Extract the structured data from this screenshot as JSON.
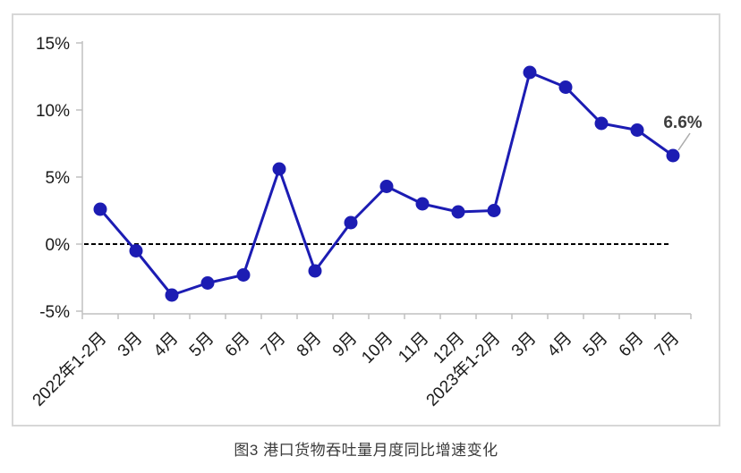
{
  "caption": "图3 港口货物吞吐量月度同比增速变化",
  "colors": {
    "line": "#1c1cb3",
    "marker": "#1c1cb3",
    "zero_line": "#000000",
    "axis": "#c0c0c0",
    "frame_border": "#d7d7d7",
    "tick_label": "#1a1a1a",
    "annotation_text": "#3d3d3d",
    "leader_line": "#ababab",
    "caption_text": "#3a3a3a",
    "background": "#ffffff"
  },
  "chart_data": {
    "type": "line",
    "title": "图3 港口货物吞吐量月度同比增速变化",
    "xlabel": "",
    "ylabel": "",
    "categories": [
      "2022年1-2月",
      "3月",
      "4月",
      "5月",
      "6月",
      "7月",
      "8月",
      "9月",
      "10月",
      "11月",
      "12月",
      "2023年1-2月",
      "3月",
      "4月",
      "5月",
      "6月",
      "7月"
    ],
    "series": [
      {
        "name": "港口货物吞吐量月度同比增速",
        "values": [
          2.6,
          -0.5,
          -3.8,
          -2.9,
          -2.3,
          5.6,
          -2.0,
          1.6,
          4.3,
          3.0,
          2.4,
          2.5,
          12.8,
          11.7,
          9.0,
          8.5,
          6.6
        ]
      }
    ],
    "ylim": [
      -5,
      15
    ],
    "ytick_values": [
      15,
      10,
      5,
      0,
      -5
    ],
    "ytick_labels": [
      "15%",
      "10%",
      "5%",
      "0%",
      "-5%"
    ],
    "zero_reference_line": true,
    "grid": false,
    "legend_position": "none",
    "annotation": {
      "text": "6.6%",
      "point_index": 16
    }
  }
}
